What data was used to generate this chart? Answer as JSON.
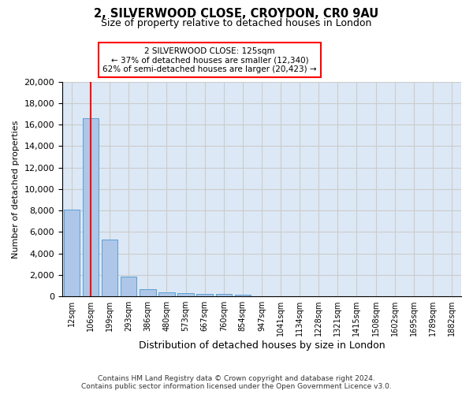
{
  "title_line1": "2, SILVERWOOD CLOSE, CROYDON, CR0 9AU",
  "title_line2": "Size of property relative to detached houses in London",
  "xlabel": "Distribution of detached houses by size in London",
  "ylabel": "Number of detached properties",
  "categories": [
    "12sqm",
    "106sqm",
    "199sqm",
    "293sqm",
    "386sqm",
    "480sqm",
    "573sqm",
    "667sqm",
    "760sqm",
    "854sqm",
    "947sqm",
    "1041sqm",
    "1134sqm",
    "1228sqm",
    "1321sqm",
    "1415sqm",
    "1508sqm",
    "1602sqm",
    "1695sqm",
    "1789sqm",
    "1882sqm"
  ],
  "values": [
    8100,
    16600,
    5300,
    1850,
    700,
    350,
    280,
    220,
    200,
    175,
    0,
    0,
    0,
    0,
    0,
    0,
    0,
    0,
    0,
    0,
    0
  ],
  "bar_color": "#aec6e8",
  "bar_edge_color": "#5a9fd4",
  "annotation_text_line1": "2 SILVERWOOD CLOSE: 125sqm",
  "annotation_text_line2": "← 37% of detached houses are smaller (12,340)",
  "annotation_text_line3": "62% of semi-detached houses are larger (20,423) →",
  "annotation_box_color": "white",
  "annotation_box_edge_color": "red",
  "vline_color": "red",
  "grid_color": "#cccccc",
  "background_color": "white",
  "axes_bg_color": "#dce8f5",
  "ylim": [
    0,
    20000
  ],
  "yticks": [
    0,
    2000,
    4000,
    6000,
    8000,
    10000,
    12000,
    14000,
    16000,
    18000,
    20000
  ],
  "footer_line1": "Contains HM Land Registry data © Crown copyright and database right 2024.",
  "footer_line2": "Contains public sector information licensed under the Open Government Licence v3.0."
}
